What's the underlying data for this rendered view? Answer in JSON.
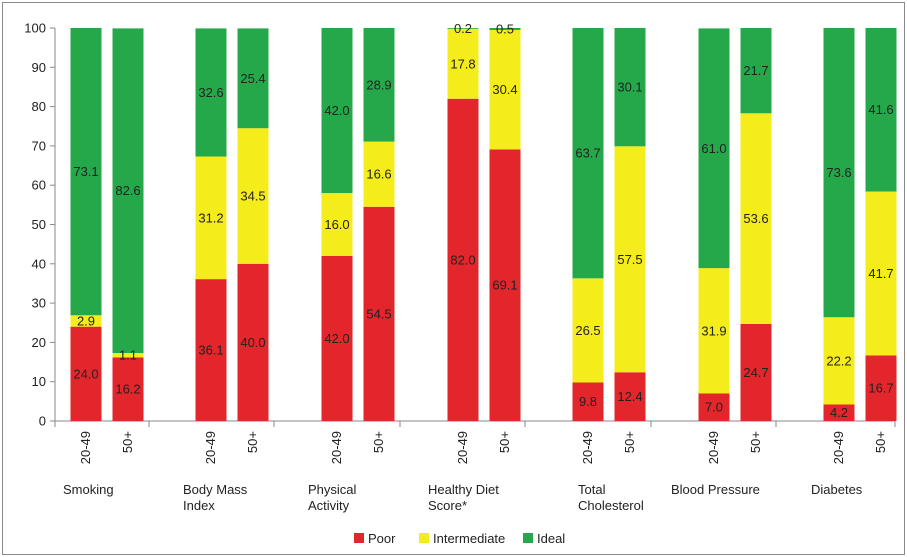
{
  "chart_data": {
    "type": "bar",
    "stacked": true,
    "title": "",
    "xlabel": "",
    "ylabel": "",
    "ylim": [
      0,
      100
    ],
    "yticks": [
      0,
      10,
      20,
      30,
      40,
      50,
      60,
      70,
      80,
      90,
      100
    ],
    "grid": false,
    "legend_position": "bottom",
    "groups": [
      {
        "label": "Smoking",
        "label_lines": [
          "Smoking"
        ],
        "bars": [
          {
            "category": "20-49",
            "values": [
              24.0,
              2.9,
              73.1
            ],
            "labels": [
              "24.0",
              "2.9",
              "73.1"
            ]
          },
          {
            "category": "50+",
            "values": [
              16.2,
              1.1,
              82.6
            ],
            "labels": [
              "16.2",
              "1.1",
              "82.6"
            ]
          }
        ]
      },
      {
        "label": "Body Mass Index",
        "label_lines": [
          "Body Mass",
          "Index"
        ],
        "bars": [
          {
            "category": "20-49",
            "values": [
              36.1,
              31.2,
              32.6
            ],
            "labels": [
              "36.1",
              "31.2",
              "32.6"
            ]
          },
          {
            "category": "50+",
            "values": [
              40.0,
              34.5,
              25.4
            ],
            "labels": [
              "40.0",
              "34.5",
              "25.4"
            ]
          }
        ]
      },
      {
        "label": "Physical Activity",
        "label_lines": [
          "Physical",
          "Activity"
        ],
        "bars": [
          {
            "category": "20-49",
            "values": [
              42.0,
              16.0,
              42.0
            ],
            "labels": [
              "42.0",
              "16.0",
              "42.0"
            ]
          },
          {
            "category": "50+",
            "values": [
              54.5,
              16.6,
              28.9
            ],
            "labels": [
              "54.5",
              "16.6",
              "28.9"
            ]
          }
        ]
      },
      {
        "label": "Healthy Diet Score*",
        "label_lines": [
          "Healthy Diet",
          "Score*"
        ],
        "bars": [
          {
            "category": "20-49",
            "values": [
              82.0,
              17.8,
              0.2
            ],
            "labels": [
              "82.0",
              "17.8",
              "0.2"
            ]
          },
          {
            "category": "50+",
            "values": [
              69.1,
              30.4,
              0.5
            ],
            "labels": [
              "69.1",
              "30.4",
              "0.5"
            ]
          }
        ]
      },
      {
        "label": "Total Cholesterol",
        "label_lines": [
          "Total",
          "Cholesterol"
        ],
        "bars": [
          {
            "category": "20-49",
            "values": [
              9.8,
              26.5,
              63.7
            ],
            "labels": [
              "9.8",
              "26.5",
              "63.7"
            ]
          },
          {
            "category": "50+",
            "values": [
              12.4,
              57.5,
              30.1
            ],
            "labels": [
              "12.4",
              "57.5",
              "30.1"
            ]
          }
        ]
      },
      {
        "label": "Blood Pressure",
        "label_lines": [
          "Blood Pressure"
        ],
        "bars": [
          {
            "category": "20-49",
            "values": [
              7.0,
              31.9,
              61.0
            ],
            "labels": [
              "7.0",
              "31.9",
              "61.0"
            ]
          },
          {
            "category": "50+",
            "values": [
              24.7,
              53.6,
              21.7
            ],
            "labels": [
              "24.7",
              "53.6",
              "21.7"
            ]
          }
        ]
      },
      {
        "label": "Diabetes",
        "label_lines": [
          "Diabetes"
        ],
        "bars": [
          {
            "category": "20-49",
            "values": [
              4.2,
              22.2,
              73.6
            ],
            "labels": [
              "4.2",
              "22.2",
              "73.6"
            ]
          },
          {
            "category": "50+",
            "values": [
              16.7,
              41.7,
              41.6
            ],
            "labels": [
              "16.7",
              "41.7",
              "41.6"
            ]
          }
        ]
      }
    ],
    "series": [
      {
        "name": "Poor",
        "color": "#e3262b"
      },
      {
        "name": "Intermediate",
        "color": "#f5ec1c"
      },
      {
        "name": "Ideal",
        "color": "#25a84a"
      }
    ]
  }
}
